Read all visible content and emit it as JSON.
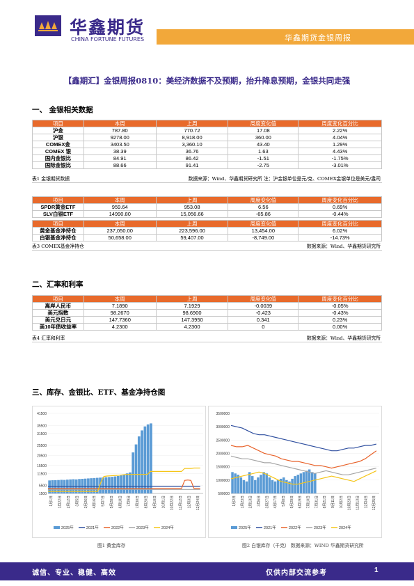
{
  "header": {
    "logo_cn": "华鑫期货",
    "logo_en": "CHINA FORTUNE FUTURES",
    "band_text": "华鑫期货金银周报",
    "colors": {
      "brand": "#3a2a8a",
      "accent": "#f2a83a",
      "table_header": "#e86a2b"
    }
  },
  "title": "【鑫期汇】金银周报0810：美经济数据不及预期，抬升降息预期，金银共同走强",
  "sections": {
    "s1": "一、  金银相关数据",
    "s2": "二、汇率和利率",
    "s3": "三、库存、金银比、ETF、基金净持仓图"
  },
  "table1": {
    "headers": [
      "项目",
      "本周",
      "上周",
      "周度变化值",
      "周度变化百分比"
    ],
    "rows": [
      [
        "沪金",
        "787.80",
        "770.72",
        "17.08",
        "2.22%"
      ],
      [
        "沪银",
        "9278.00",
        "8,918.00",
        "360.00",
        "4.04%"
      ],
      [
        "COMEX金",
        "3403.50",
        "3,360.10",
        "43.40",
        "1.29%"
      ],
      [
        "COMEX 银",
        "38.39",
        "36.76",
        "1.63",
        "4.43%"
      ],
      [
        "国内金银比",
        "84.91",
        "86.42",
        "-1.51",
        "-1.75%"
      ],
      [
        "国际金银比",
        "88.66",
        "91.41",
        "-2.75",
        "-3.01%"
      ]
    ],
    "note_left": "表1 金银期货数据",
    "note_right": "数据来源：Wind、华鑫期货研究所 注：沪金银单位是元/克、COMEX金银单位是美元/盎司"
  },
  "table2": {
    "headers": [
      "项目",
      "本周",
      "上周",
      "周度变化值",
      "周度变化百分比"
    ],
    "rows": [
      [
        "SPDR黄金ETF",
        "959.64",
        "953.08",
        "6.56",
        "0.69%"
      ],
      [
        "SLV白银ETF",
        "14990.80",
        "15,056.66",
        "-65.86",
        "-0.44%"
      ]
    ]
  },
  "table3": {
    "headers": [
      "项目",
      "本周",
      "上周",
      "周度变化值",
      "周度变化百分比"
    ],
    "rows": [
      [
        "黄金基金净持仓",
        "237,050.00",
        "223,596.00",
        "13,454.00",
        "6.02%"
      ],
      [
        "白银基金净持仓",
        "50,658.00",
        "59,407.00",
        "-8,749.00",
        "-14.73%"
      ]
    ],
    "note_left": "表3 COMEX基金净持仓",
    "note_right": "数据来源：Wind、华鑫期货研究所"
  },
  "table4": {
    "headers": [
      "项目",
      "本周",
      "上周",
      "周度变化值",
      "周度变化百分比"
    ],
    "rows": [
      [
        "离岸人民币",
        "7.1890",
        "7.1929",
        "-0.0039",
        "-0.05%"
      ],
      [
        "美元指数",
        "98.2670",
        "98.6900",
        "-0.423",
        "-0.43%"
      ],
      [
        "美元兑日元",
        "147.7360",
        "147.3950",
        "0.341",
        "0.23%"
      ],
      [
        "美10年债收益率",
        "4.2300",
        "4.2300",
        "0",
        "0.00%"
      ]
    ],
    "note_left": "表4 汇率和利率",
    "note_right": "数据来源：Wind、华鑫期货研究所"
  },
  "chart_data": [
    {
      "type": "bar+line",
      "caption": "图1 黄金库存",
      "yticks": [
        "41500",
        "35500",
        "31500",
        "25500",
        "20500",
        "15500",
        "11500",
        "5500",
        "1500"
      ],
      "ylim": [
        1500,
        41500
      ],
      "xticks": [
        "1月1日",
        "1月22日",
        "2月12日",
        "3月5日",
        "3月26日",
        "4月16日",
        "5月7日",
        "5月28日",
        "6月18日",
        "7月9日",
        "7月30日",
        "8月20日",
        "9月10日",
        "10月1日",
        "10月22日",
        "11月12日",
        "12月3日",
        "12月24日"
      ],
      "legend": [
        "2025年",
        "2021年",
        "2022年",
        "2023年",
        "2024年"
      ],
      "colors": {
        "2025年": "#5b9bd5",
        "2021年": "#2f4f9f",
        "2022年": "#e8622a",
        "2023年": "#a5a5a5",
        "2024年": "#f5c518"
      },
      "series": [
        {
          "name": "2025年",
          "kind": "bar",
          "values": [
            8000,
            8100,
            8150,
            8200,
            8300,
            8250,
            8400,
            8500,
            8600,
            8500,
            8700,
            8800,
            8900,
            9000,
            9100,
            9200,
            9300,
            9400,
            9500,
            9600,
            9700,
            9800,
            10000,
            10200,
            10500,
            11000,
            11500,
            12000,
            22000,
            26000,
            30000,
            33000,
            35000,
            36000,
            36500
          ]
        },
        {
          "name": "2021年",
          "kind": "line",
          "values": [
            5000,
            5000,
            5000,
            5000,
            5000,
            5000,
            5000,
            5000,
            5000,
            5000,
            5000,
            5000,
            5000,
            5000,
            5000,
            5000,
            5000,
            5000,
            5000,
            5000,
            5000,
            5000,
            5000,
            5000,
            5000,
            5000,
            5000,
            5000,
            5000,
            5000,
            5000,
            5000,
            5000,
            5000,
            5000,
            5000,
            5000,
            5000,
            5000,
            5000,
            5000,
            5000,
            5000,
            5000,
            5000,
            5000,
            5000,
            5000,
            5000,
            5000
          ]
        },
        {
          "name": "2022年",
          "kind": "line",
          "values": [
            4000,
            4000,
            4000,
            4000,
            4000,
            4000,
            4000,
            4000,
            4000,
            4000,
            4000,
            4000,
            4000,
            4000,
            4000,
            4000,
            4000,
            4000,
            4000,
            4000,
            4000,
            4000,
            4000,
            4000,
            4000,
            4000,
            4000,
            4000,
            4000,
            4000,
            4000,
            4000,
            4000,
            4000,
            4000,
            4000,
            4000,
            4000,
            4000,
            4000,
            4000,
            4000,
            4000,
            4000,
            8000,
            8200,
            8000,
            4000,
            4000,
            4000
          ]
        },
        {
          "name": "2023年",
          "kind": "line",
          "values": [
            3500,
            3500,
            3500,
            3500,
            3500,
            3500,
            3500,
            3500,
            3500,
            3500,
            3500,
            3500,
            3500,
            3500,
            3500,
            3500,
            3500,
            3500,
            3500,
            3500,
            3500,
            3500,
            3500,
            3500,
            3500,
            3500,
            3500,
            3500,
            3500,
            3500,
            3500,
            3500,
            3500,
            3500,
            3500,
            3500,
            3500,
            3500,
            3500,
            3500,
            3500,
            3500,
            3500,
            3500,
            3500,
            3500,
            3500,
            3500,
            3500,
            3500
          ]
        },
        {
          "name": "2024年",
          "kind": "line",
          "values": [
            2500,
            2500,
            2500,
            2500,
            2500,
            2500,
            2500,
            2500,
            2500,
            2500,
            2500,
            2500,
            2500,
            2500,
            2500,
            2500,
            2500,
            7000,
            10000,
            10200,
            10300,
            10400,
            10500,
            10600,
            10800,
            11000,
            11000,
            11000,
            11000,
            11000,
            11000,
            11000,
            11000,
            12500,
            12500,
            12500,
            12500,
            12500,
            12500,
            12500,
            12500,
            12500,
            12500,
            12500,
            14000,
            14000,
            14000,
            14200,
            14200,
            14200
          ]
        }
      ]
    },
    {
      "type": "bar+line",
      "caption": "图2 白银库存（千克）  数据来源：WIND 华鑫期货研究所",
      "yticks": [
        "3500000",
        "3000000",
        "2500000",
        "2000000",
        "1500000",
        "1000000",
        "500000"
      ],
      "ylim": [
        500000,
        3500000
      ],
      "xticks": [
        "1月2日",
        "1月23日",
        "2月13日",
        "3月6日",
        "3月27日",
        "4月17日",
        "5月8日",
        "5月29日",
        "6月19日",
        "7月10日",
        "7月31日",
        "8月21日",
        "9月11日",
        "10月2日",
        "10月23日",
        "11月13日",
        "12月4日",
        "12月25日"
      ],
      "legend": [
        "2025年",
        "2021年",
        "2022年",
        "2023年",
        "2024年"
      ],
      "colors": {
        "2025年": "#5b9bd5",
        "2021年": "#2f4f9f",
        "2022年": "#e8622a",
        "2023年": "#a5a5a5",
        "2024年": "#f5c518"
      },
      "series": [
        {
          "name": "2025年",
          "kind": "bar",
          "values": [
            1300000,
            1250000,
            1200000,
            1100000,
            1000000,
            950000,
            1300000,
            1150000,
            1000000,
            1100000,
            1200000,
            1300000,
            1250000,
            1100000,
            1000000,
            950000,
            1000000,
            1050000,
            1100000,
            1000000,
            950000,
            1050000,
            1150000,
            1200000,
            1250000,
            1300000,
            1350000,
            1400000,
            1300000,
            1250000
          ]
        },
        {
          "name": "2021年",
          "kind": "line",
          "values": [
            3050000,
            3000000,
            2950000,
            2850000,
            2750000,
            2700000,
            2700000,
            2650000,
            2600000,
            2550000,
            2500000,
            2450000,
            2400000,
            2350000,
            2300000,
            2250000,
            2200000,
            2150000,
            2100000,
            2100000,
            2150000,
            2200000,
            2200000,
            2250000,
            2300000,
            2300000,
            2350000
          ]
        },
        {
          "name": "2022年",
          "kind": "line",
          "values": [
            2300000,
            2250000,
            2250000,
            2300000,
            2200000,
            2100000,
            2000000,
            1950000,
            1900000,
            1800000,
            1750000,
            1700000,
            1700000,
            1650000,
            1600000,
            1550000,
            1550000,
            1500000,
            1450000,
            1500000,
            1550000,
            1600000,
            1650000,
            1700000,
            1800000,
            1950000,
            2100000
          ]
        },
        {
          "name": "2023年",
          "kind": "line",
          "values": [
            1900000,
            1850000,
            1800000,
            1800000,
            1750000,
            1700000,
            1650000,
            1650000,
            1600000,
            1550000,
            1500000,
            1450000,
            1400000,
            1350000,
            1300000,
            1250000,
            1300000,
            1350000,
            1300000,
            1250000,
            1200000,
            1200000,
            1250000,
            1300000,
            1350000,
            1400000,
            1450000
          ]
        },
        {
          "name": "2024年",
          "kind": "line",
          "values": [
            1050000,
            1100000,
            1150000,
            1200000,
            1250000,
            1300000,
            1250000,
            1150000,
            1050000,
            950000,
            900000,
            850000,
            850000,
            900000,
            950000,
            1000000,
            1050000,
            1100000,
            1150000,
            1100000,
            1050000,
            1000000,
            950000,
            1050000,
            1150000,
            1250000,
            1350000
          ]
        }
      ]
    }
  ],
  "footer": {
    "left": "诚信、专业、稳健、高效",
    "right": "仅供内部交流参考",
    "page": "1"
  }
}
